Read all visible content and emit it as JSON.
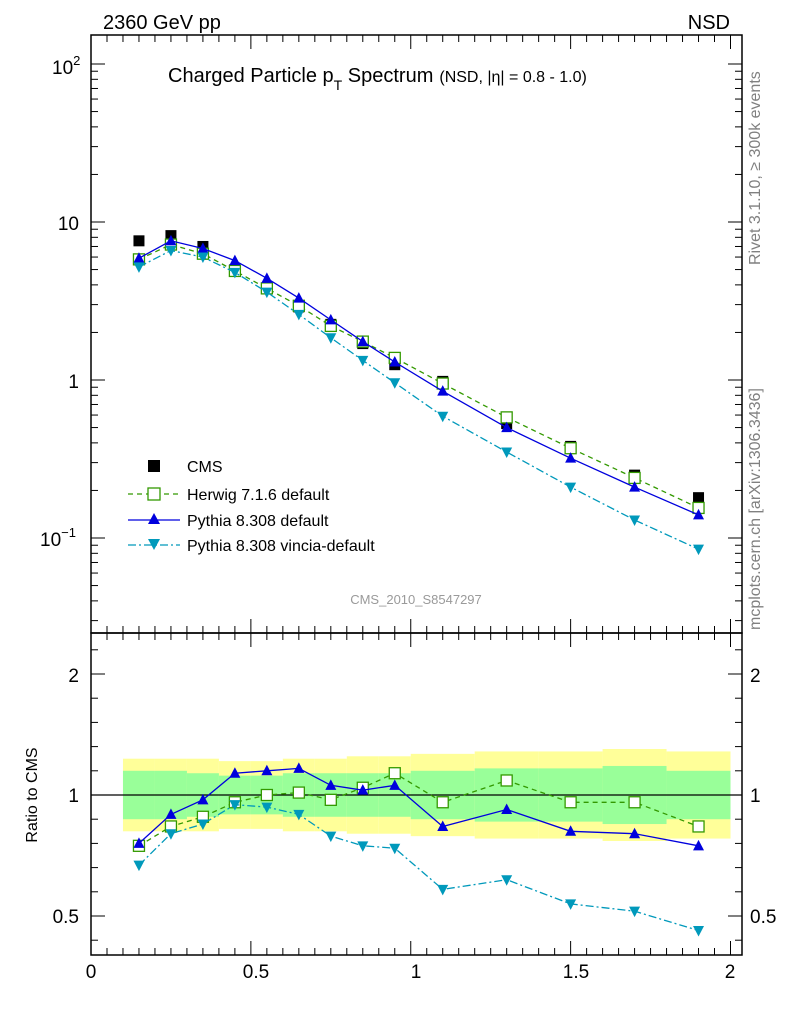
{
  "header": {
    "left": "2360 GeV pp",
    "right": "NSD"
  },
  "side": {
    "upper": "Rivet 3.1.10, ≥ 300k events",
    "lower": "mcplots.cern.ch [arXiv:1306.3436]"
  },
  "watermark": "CMS_2010_S8547297",
  "chart_data": [
    {
      "type": "scatter",
      "title": {
        "main": "Charged Particle p",
        "sub": "T",
        "main2": " Spectrum",
        "note": "(NSD, |η| = 0.8 - 1.0)"
      },
      "yscale": "log",
      "xlim": [
        0,
        2
      ],
      "ylim": [
        0.025,
        150
      ],
      "ytick_labels": {
        "e2": "10",
        "e2sup": "2",
        "ten": "10",
        "one": "1",
        "em1": "10",
        "em1sup": "−1"
      },
      "legend_position": "lower-left",
      "x": [
        0.15,
        0.25,
        0.35,
        0.45,
        0.55,
        0.65,
        0.75,
        0.85,
        0.95,
        1.1,
        1.3,
        1.5,
        1.7,
        1.9
      ],
      "series": [
        {
          "name": "CMS",
          "color": "#000000",
          "marker": "square-filled",
          "values": [
            7.6,
            8.2,
            7.0,
            5.0,
            3.8,
            2.9,
            2.25,
            1.7,
            1.25,
            0.98,
            0.53,
            0.38,
            0.25,
            0.18
          ]
        },
        {
          "name": "Herwig 7.1.6 default",
          "color": "#339900",
          "marker": "square-open",
          "dash": "5,4",
          "values": [
            5.8,
            7.2,
            6.3,
            4.9,
            3.8,
            2.95,
            2.2,
            1.75,
            1.38,
            0.95,
            0.58,
            0.37,
            0.24,
            0.155
          ]
        },
        {
          "name": "Pythia 8.308 default",
          "color": "#0000dd",
          "marker": "triangle-up",
          "dash": "",
          "values": [
            5.9,
            7.6,
            6.8,
            5.7,
            4.4,
            3.3,
            2.4,
            1.75,
            1.3,
            0.85,
            0.5,
            0.32,
            0.21,
            0.14
          ]
        },
        {
          "name": "Pythia 8.308 vincia-default",
          "color": "#0099bb",
          "marker": "triangle-down",
          "dash": "8,3,2,3",
          "values": [
            5.2,
            6.6,
            6.0,
            4.8,
            3.6,
            2.6,
            1.85,
            1.33,
            0.96,
            0.59,
            0.35,
            0.21,
            0.13,
            0.085
          ]
        }
      ]
    },
    {
      "type": "line",
      "ylabel": "Ratio to CMS",
      "xlim": [
        0,
        2
      ],
      "ylim": [
        0.35,
        2.3
      ],
      "xtick_labels": [
        "0",
        "0.5",
        "1",
        "1.5",
        "2"
      ],
      "ytick_labels": [
        "0.5",
        "1",
        "2"
      ],
      "bands": {
        "x_edges": [
          0.1,
          0.2,
          0.3,
          0.4,
          0.5,
          0.6,
          0.7,
          0.8,
          0.9,
          1.0,
          1.2,
          1.4,
          1.6,
          1.8,
          2.0
        ],
        "stat": {
          "color": "#99ff99",
          "lo": [
            0.9,
            0.9,
            0.91,
            0.92,
            0.92,
            0.91,
            0.91,
            0.91,
            0.91,
            0.9,
            0.89,
            0.89,
            0.88,
            0.9
          ],
          "hi": [
            1.1,
            1.1,
            1.09,
            1.08,
            1.08,
            1.09,
            1.09,
            1.09,
            1.09,
            1.1,
            1.11,
            1.11,
            1.12,
            1.1
          ]
        },
        "syst": {
          "color": "#ffff99",
          "lo": [
            0.85,
            0.85,
            0.85,
            0.86,
            0.86,
            0.85,
            0.85,
            0.84,
            0.84,
            0.83,
            0.82,
            0.82,
            0.81,
            0.82
          ],
          "hi": [
            1.15,
            1.15,
            1.15,
            1.14,
            1.14,
            1.15,
            1.15,
            1.16,
            1.16,
            1.17,
            1.18,
            1.18,
            1.19,
            1.18
          ]
        }
      },
      "series": [
        {
          "name": "Herwig 7.1.6 default",
          "values": [
            0.79,
            0.87,
            0.91,
            0.97,
            1.0,
            1.01,
            0.98,
            1.03,
            1.09,
            0.97,
            1.06,
            0.97,
            0.97,
            0.87
          ]
        },
        {
          "name": "Pythia 8.308 default",
          "values": [
            0.8,
            0.92,
            0.98,
            1.09,
            1.1,
            1.11,
            1.04,
            1.02,
            1.04,
            0.87,
            0.94,
            0.85,
            0.84,
            0.79
          ]
        },
        {
          "name": "Pythia 8.308 vincia-default",
          "values": [
            0.71,
            0.84,
            0.88,
            0.96,
            0.95,
            0.92,
            0.83,
            0.79,
            0.78,
            0.61,
            0.65,
            0.55,
            0.52,
            0.44
          ]
        }
      ]
    }
  ]
}
